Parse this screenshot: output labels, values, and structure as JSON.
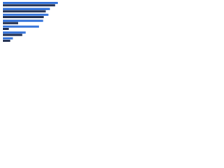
{
  "chart_data": {
    "type": "hbar",
    "categories": [
      null,
      null,
      null,
      null,
      null,
      null,
      null
    ],
    "series": [
      {
        "color": "#2e6fd9",
        "values": [
          82,
          70,
          68,
          60,
          54,
          34,
          15
        ]
      },
      {
        "color": "#1d2b4d",
        "values": [
          78,
          64,
          61,
          23,
          9,
          29,
          11
        ]
      }
    ],
    "xlim": [
      0,
      100
    ]
  }
}
